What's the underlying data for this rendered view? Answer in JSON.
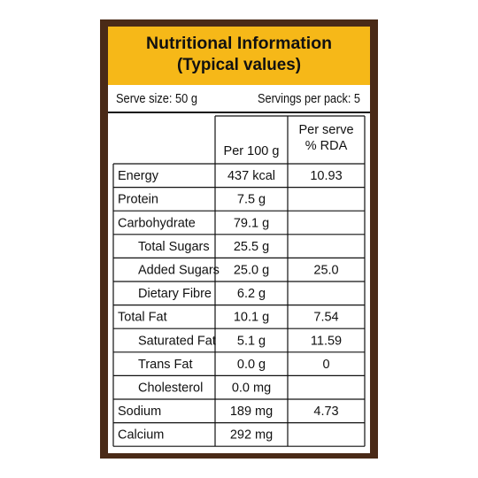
{
  "header": {
    "title": "Nutritional Information",
    "subtitle": "(Typical values)"
  },
  "serving": {
    "serve_size": "Serve size: 50 g",
    "servings": "Servings per pack: 5"
  },
  "table": {
    "columns": {
      "per_100g": "Per 100 g",
      "rda": [
        "Per serve",
        "% RDA"
      ]
    },
    "rows": [
      {
        "name": "Energy",
        "per_100g": "437 kcal",
        "rda": "10.93",
        "indent": false
      },
      {
        "name": "Protein",
        "per_100g": "7.5 g",
        "rda": null,
        "indent": false
      },
      {
        "name": "Carbohydrate",
        "per_100g": "79.1 g",
        "rda": null,
        "indent": false
      },
      {
        "name": "Total Sugars",
        "per_100g": "25.5 g",
        "rda": null,
        "indent": true
      },
      {
        "name": "Added Sugars",
        "per_100g": "25.0 g",
        "rda": "25.0",
        "indent": true
      },
      {
        "name": "Dietary Fibre",
        "per_100g": "6.2 g",
        "rda": null,
        "indent": true
      },
      {
        "name": "Total Fat",
        "per_100g": "10.1 g",
        "rda": "7.54",
        "indent": false
      },
      {
        "name": "Saturated Fat",
        "per_100g": "5.1 g",
        "rda": "11.59",
        "indent": true
      },
      {
        "name": "Trans Fat",
        "per_100g": "0.0 g",
        "rda": "0",
        "indent": true
      },
      {
        "name": "Cholesterol",
        "per_100g": "0.0 mg",
        "rda": null,
        "indent": true
      },
      {
        "name": "Sodium",
        "per_100g": "189 mg",
        "rda": "4.73",
        "indent": false
      },
      {
        "name": "Calcium",
        "per_100g": "292 mg",
        "rda": null,
        "indent": false
      }
    ]
  }
}
